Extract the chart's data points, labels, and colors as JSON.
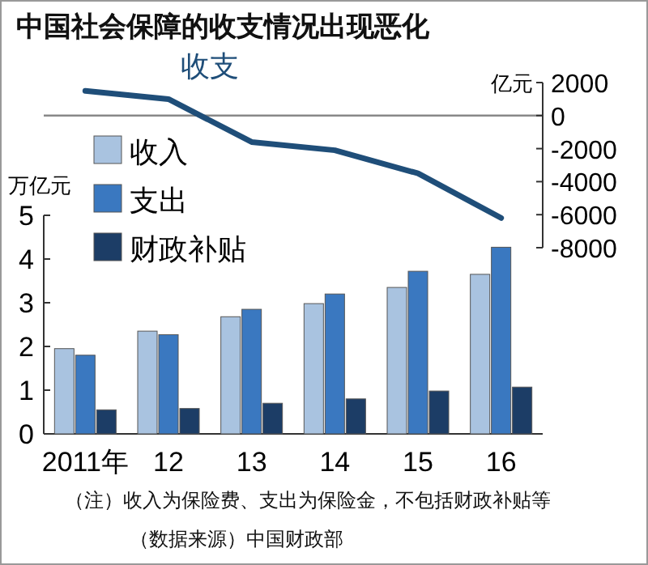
{
  "chart_data": [
    {
      "type": "line",
      "title": "中国社会保障的收支情况出现恶化",
      "ylabel": "亿元",
      "categories": [
        null,
        null,
        null,
        null,
        null,
        null
      ],
      "series": [
        {
          "name": "收支",
          "color": "#1f4e79",
          "values": [
            1500,
            1000,
            -1600,
            -2100,
            -3500,
            -6200
          ]
        }
      ],
      "ylim": [
        -8000,
        2000
      ],
      "yticks": [
        {
          "value": -8000,
          "label": "-8000"
        },
        {
          "value": -6000,
          "label": "-6000"
        },
        {
          "value": -4000,
          "label": "-4000"
        },
        {
          "value": -2000,
          "label": "-2000"
        },
        0,
        2000
      ],
      "ref_lines": [
        {
          "axis": "y",
          "value": 0,
          "color": "#888888"
        }
      ],
      "tick_labels": "y"
    },
    {
      "type": "bar",
      "ylabel": "万亿元",
      "categories": [
        "2011年",
        "12",
        "13",
        "14",
        "15",
        "16"
      ],
      "series": [
        {
          "name": "收入",
          "color": "#a9c3e0",
          "values": [
            1.95,
            2.35,
            2.68,
            2.98,
            3.35,
            3.65
          ]
        },
        {
          "name": "支出",
          "color": "#3a78c0",
          "values": [
            1.8,
            2.27,
            2.85,
            3.2,
            3.72,
            4.27
          ]
        },
        {
          "name": "财政补贴",
          "color": "#1c3d66",
          "values": [
            0.55,
            0.58,
            0.7,
            0.8,
            0.98,
            1.07
          ]
        }
      ],
      "ylim": [
        0,
        5
      ],
      "yticks": [
        0,
        1,
        2,
        3,
        4,
        5
      ],
      "legend": "top left",
      "annotations": [
        "（注）收入为保险费、支出为保险金，不包括财政补贴等（数据来源）中国财政部"
      ]
    }
  ]
}
